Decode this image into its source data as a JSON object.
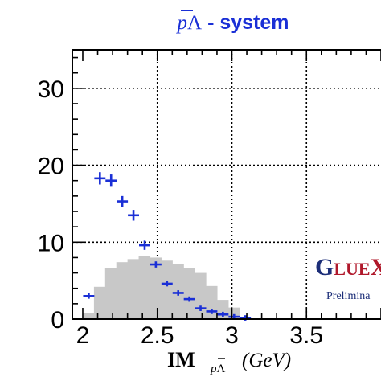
{
  "title": {
    "p": "p",
    "lambda": "Λ",
    "suffix": " - system",
    "color": "#1a2fd6"
  },
  "xlabel": {
    "im": "IM",
    "sub": "p",
    "sub_lambda": "Λ",
    "unit": "(GeV)"
  },
  "logo": {
    "name": "GlueX",
    "letters": [
      "G",
      "L",
      "U",
      "E",
      "X"
    ],
    "caption": "Prelimina"
  },
  "colors": {
    "data_points": "#1a2fd6",
    "histogram_fill": "#c8c8c8",
    "grid": "#000000",
    "logo_red": "#b0182b",
    "logo_navy": "#1c2e78"
  },
  "chart_data": {
    "type": "bar",
    "title": "pΛ̄ - system",
    "xlabel": "IM_pΛ̄ (GeV)",
    "ylabel": "",
    "xlim": [
      1.93,
      4.0
    ],
    "ylim": [
      0,
      35
    ],
    "x_ticks": [
      "2",
      "2.5",
      "3",
      "3.5"
    ],
    "x_tick_values": [
      2,
      2.5,
      3,
      3.5
    ],
    "y_ticks": [
      "0",
      "10",
      "20",
      "30"
    ],
    "y_tick_values": [
      0,
      10,
      20,
      30
    ],
    "grid": true,
    "series": [
      {
        "kind": "histogram",
        "bin_width": 0.075,
        "bins": [
          {
            "x_low": 2.0,
            "x_high": 2.075,
            "value": 0.8
          },
          {
            "x_low": 2.075,
            "x_high": 2.15,
            "value": 4.2
          },
          {
            "x_low": 2.15,
            "x_high": 2.225,
            "value": 6.6
          },
          {
            "x_low": 2.225,
            "x_high": 2.3,
            "value": 7.4
          },
          {
            "x_low": 2.3,
            "x_high": 2.375,
            "value": 7.8
          },
          {
            "x_low": 2.375,
            "x_high": 2.45,
            "value": 8.2
          },
          {
            "x_low": 2.45,
            "x_high": 2.525,
            "value": 8.0
          },
          {
            "x_low": 2.525,
            "x_high": 2.6,
            "value": 7.6
          },
          {
            "x_low": 2.6,
            "x_high": 2.675,
            "value": 7.2
          },
          {
            "x_low": 2.675,
            "x_high": 2.75,
            "value": 6.6
          },
          {
            "x_low": 2.75,
            "x_high": 2.825,
            "value": 6.0
          },
          {
            "x_low": 2.825,
            "x_high": 2.9,
            "value": 4.3
          },
          {
            "x_low": 2.9,
            "x_high": 2.975,
            "value": 2.5
          },
          {
            "x_low": 2.975,
            "x_high": 3.05,
            "value": 1.5
          }
        ]
      },
      {
        "kind": "data_points",
        "x_halfwidth": 0.0375,
        "points": [
          {
            "x": 2.04,
            "y": 3.0,
            "err": 0.3
          },
          {
            "x": 2.115,
            "y": 18.3,
            "err": 0.8
          },
          {
            "x": 2.19,
            "y": 18.0,
            "err": 0.8
          },
          {
            "x": 2.265,
            "y": 15.3,
            "err": 0.7
          },
          {
            "x": 2.34,
            "y": 13.5,
            "err": 0.7
          },
          {
            "x": 2.415,
            "y": 9.6,
            "err": 0.6
          },
          {
            "x": 2.49,
            "y": 7.1,
            "err": 0.4
          },
          {
            "x": 2.565,
            "y": 4.6,
            "err": 0.3
          },
          {
            "x": 2.64,
            "y": 3.4,
            "err": 0.3
          },
          {
            "x": 2.715,
            "y": 2.6,
            "err": 0.2
          },
          {
            "x": 2.79,
            "y": 1.4,
            "err": 0.1
          },
          {
            "x": 2.865,
            "y": 1.0,
            "err": 0.1
          },
          {
            "x": 2.94,
            "y": 0.6,
            "err": 0.1
          },
          {
            "x": 3.015,
            "y": 0.3,
            "err": 0.1
          },
          {
            "x": 3.09,
            "y": 0.15,
            "err": 0.05
          }
        ]
      }
    ]
  }
}
